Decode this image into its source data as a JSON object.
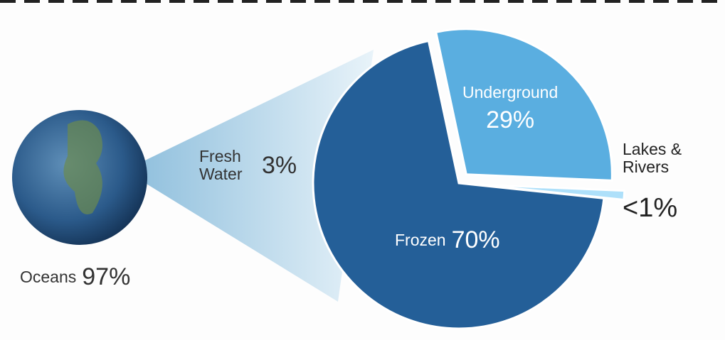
{
  "chart_data": [
    {
      "type": "globe",
      "categories": [
        "Oceans",
        "Fresh Water"
      ],
      "values": [
        97,
        3
      ],
      "value_labels": [
        "97%",
        "3%"
      ],
      "colors": [
        "#1f4f86",
        "#a9d2ea"
      ]
    },
    {
      "type": "pie",
      "categories": [
        "Underground",
        "Lakes & Rivers",
        "Frozen"
      ],
      "values": [
        29,
        1,
        70
      ],
      "value_labels": [
        "29%",
        "<1%",
        "70%"
      ],
      "colors": [
        "#5aaee0",
        "#aee0fa",
        "#245f98"
      ]
    }
  ]
}
